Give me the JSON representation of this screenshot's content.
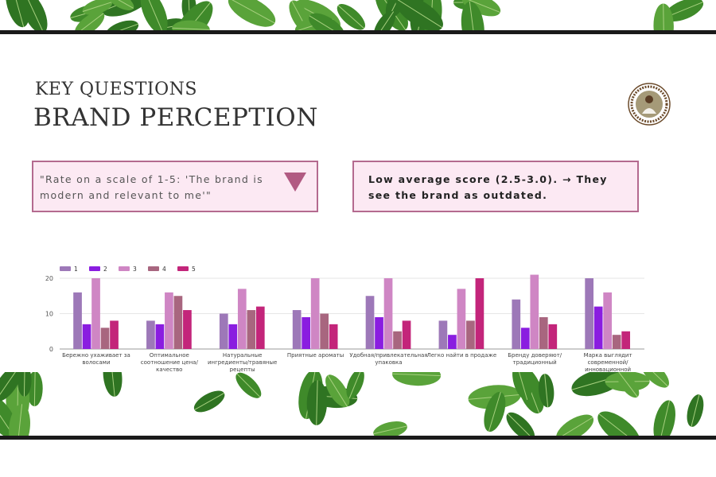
{
  "slide": {
    "kicker": "KEY QUESTIONS",
    "title": "BRAND PERCEPTION",
    "logo_text": "ТАЁЖНЫЕ ИСТОРИИ БАБУШКИ АГАФЬИ"
  },
  "question_box": {
    "text": "\"Rate on a scale of 1-5: 'The brand is modern and relevant to me'\"",
    "icon": "triangle-down-icon"
  },
  "answer_box": {
    "text": "Low average score (2.5-3.0). → They see the brand as outdated."
  },
  "colors": {
    "s1": "#9d78b8",
    "s2": "#8a1de0",
    "s3": "#cf86c4",
    "s4": "#a8667f",
    "s5": "#c3257a",
    "box_bg": "#fce9f3",
    "box_border": "#b46a8f"
  },
  "chart_data": {
    "type": "bar",
    "title": "",
    "xlabel": "",
    "ylabel": "",
    "ylim": [
      0,
      21
    ],
    "yticks": [
      "0",
      "10",
      "20"
    ],
    "legend_position": "top-left",
    "categories": [
      [
        "Бережно ухаживает за",
        "волосами"
      ],
      [
        "Оптимальное",
        "соотношение цена/",
        "качество"
      ],
      [
        "Натуральные",
        "ингредиенты/травяные",
        "рецепты"
      ],
      [
        "Приятные ароматы"
      ],
      [
        "Удобная/привлекательная",
        "упаковка"
      ],
      [
        "Легко найти в продаже"
      ],
      [
        "Бренду доверяют/",
        "традиционный"
      ],
      [
        "Марка выглядит",
        "современной/",
        "инновационной"
      ]
    ],
    "series": [
      {
        "name": "1",
        "values": [
          16,
          8,
          10,
          11,
          15,
          8,
          14,
          20
        ]
      },
      {
        "name": "2",
        "values": [
          7,
          7,
          7,
          9,
          9,
          4,
          6,
          12
        ]
      },
      {
        "name": "3",
        "values": [
          20,
          16,
          17,
          20,
          20,
          17,
          21,
          16
        ]
      },
      {
        "name": "4",
        "values": [
          6,
          15,
          11,
          10,
          5,
          8,
          9,
          4
        ]
      },
      {
        "name": "5",
        "values": [
          8,
          11,
          12,
          7,
          8,
          20,
          7,
          5
        ]
      }
    ]
  }
}
